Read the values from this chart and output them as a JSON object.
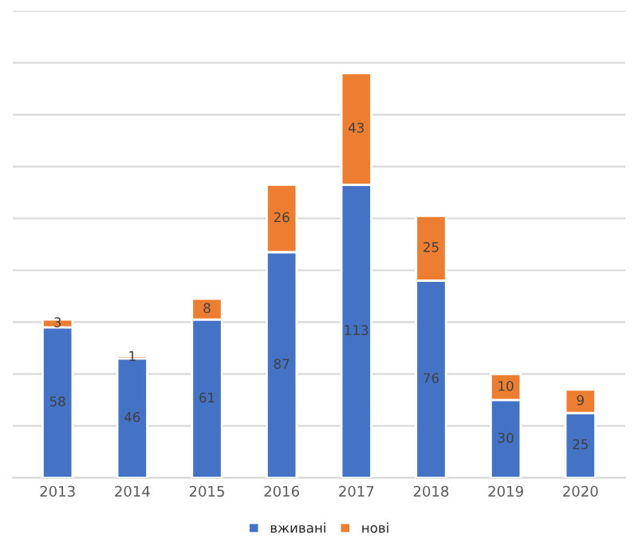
{
  "chart_data": {
    "type": "bar",
    "stacked": true,
    "categories": [
      "2013",
      "2014",
      "2015",
      "2016",
      "2017",
      "2018",
      "2019",
      "2020"
    ],
    "series": [
      {
        "name": "вживані",
        "color": "#4472c4",
        "values": [
          58,
          46,
          61,
          87,
          113,
          76,
          30,
          25
        ]
      },
      {
        "name": "нові",
        "color": "#ed7d31",
        "values": [
          3,
          1,
          8,
          26,
          43,
          25,
          10,
          9
        ]
      }
    ],
    "ylim": [
      0,
      180
    ],
    "yticks": [
      {
        "value": 0,
        "label": null
      },
      {
        "value": 20,
        "label": null
      },
      {
        "value": 40,
        "label": null
      },
      {
        "value": 60,
        "label": null
      },
      {
        "value": 80,
        "label": null
      },
      {
        "value": 100,
        "label": null
      },
      {
        "value": 120,
        "label": null
      },
      {
        "value": 140,
        "label": null
      },
      {
        "value": 160,
        "label": null
      },
      {
        "value": 180,
        "label": null
      }
    ],
    "tick_labels": "x",
    "grid": "y",
    "data_labels": true,
    "legend": "bottom"
  }
}
